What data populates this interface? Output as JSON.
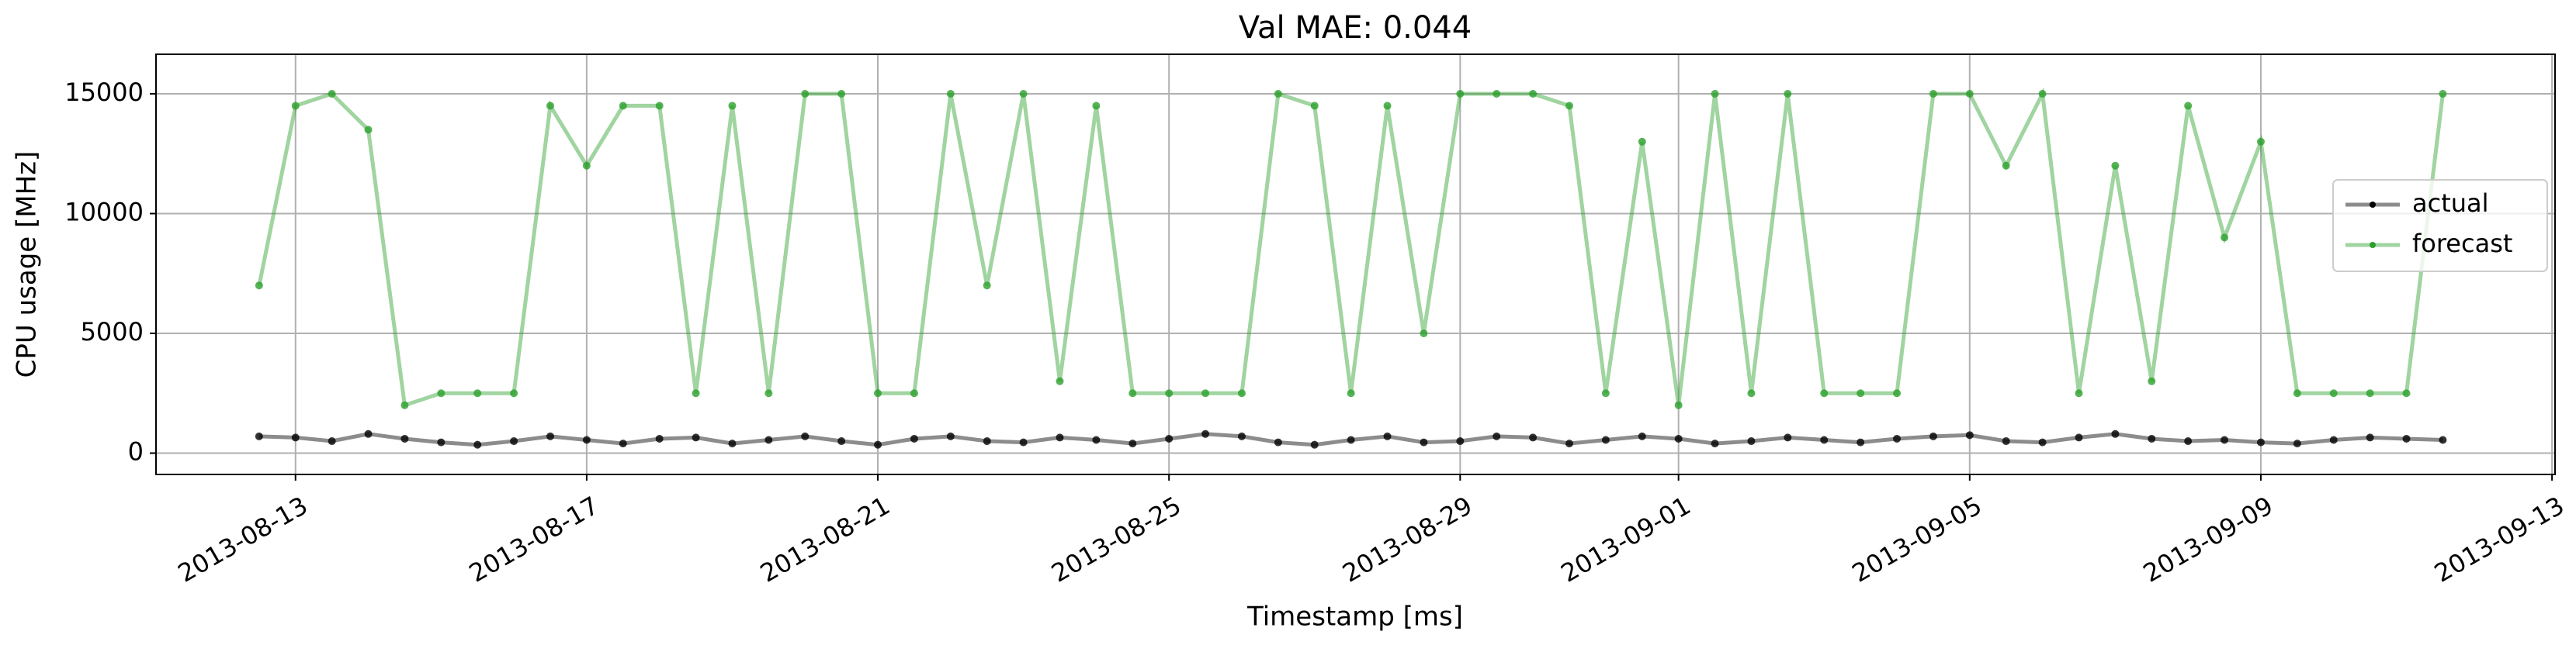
{
  "chart_data": {
    "type": "line",
    "title": "Val MAE: 0.044",
    "x_label": "Timestamp [ms]",
    "y_label": "CPU usage [MHz]",
    "x": [
      "2013-08-12 12:00",
      "2013-08-13 00:00",
      "2013-08-13 12:00",
      "2013-08-14 00:00",
      "2013-08-14 12:00",
      "2013-08-15 00:00",
      "2013-08-15 12:00",
      "2013-08-16 00:00",
      "2013-08-16 12:00",
      "2013-08-17 00:00",
      "2013-08-17 12:00",
      "2013-08-18 00:00",
      "2013-08-18 12:00",
      "2013-08-19 00:00",
      "2013-08-19 12:00",
      "2013-08-20 00:00",
      "2013-08-20 12:00",
      "2013-08-21 00:00",
      "2013-08-21 12:00",
      "2013-08-22 00:00",
      "2013-08-22 12:00",
      "2013-08-23 00:00",
      "2013-08-23 12:00",
      "2013-08-24 00:00",
      "2013-08-24 12:00",
      "2013-08-25 00:00",
      "2013-08-25 12:00",
      "2013-08-26 00:00",
      "2013-08-26 12:00",
      "2013-08-27 00:00",
      "2013-08-27 12:00",
      "2013-08-28 00:00",
      "2013-08-28 12:00",
      "2013-08-29 00:00",
      "2013-08-29 12:00",
      "2013-08-30 00:00",
      "2013-08-30 12:00",
      "2013-08-31 00:00",
      "2013-08-31 12:00",
      "2013-09-01 00:00",
      "2013-09-01 12:00",
      "2013-09-02 00:00",
      "2013-09-02 12:00",
      "2013-09-03 00:00",
      "2013-09-03 12:00",
      "2013-09-04 00:00",
      "2013-09-04 12:00",
      "2013-09-05 00:00",
      "2013-09-05 12:00",
      "2013-09-06 00:00",
      "2013-09-06 12:00",
      "2013-09-07 00:00",
      "2013-09-07 12:00",
      "2013-09-08 00:00",
      "2013-09-08 12:00",
      "2013-09-09 00:00",
      "2013-09-09 12:00",
      "2013-09-10 00:00",
      "2013-09-10 12:00",
      "2013-09-11 00:00",
      "2013-09-11 12:00"
    ],
    "series": [
      {
        "name": "actual",
        "color": "#000000",
        "values": [
          700,
          650,
          500,
          800,
          600,
          450,
          350,
          500,
          700,
          550,
          400,
          600,
          650,
          400,
          550,
          700,
          500,
          350,
          600,
          700,
          500,
          450,
          650,
          550,
          400,
          600,
          800,
          700,
          450,
          350,
          550,
          700,
          450,
          500,
          700,
          650,
          400,
          550,
          700,
          600,
          400,
          500,
          650,
          550,
          450,
          600,
          700,
          750,
          500,
          450,
          650,
          800,
          600,
          500,
          550,
          450,
          400,
          550,
          650,
          600,
          550
        ]
      },
      {
        "name": "forecast",
        "color": "#2ca02c",
        "values": [
          7000,
          14500,
          15000,
          13500,
          2000,
          2500,
          2500,
          2500,
          14500,
          12000,
          14500,
          14500,
          2500,
          14500,
          2500,
          15000,
          15000,
          2500,
          2500,
          15000,
          7000,
          15000,
          3000,
          14500,
          2500,
          2500,
          2500,
          2500,
          15000,
          14500,
          2500,
          14500,
          5000,
          15000,
          15000,
          15000,
          14500,
          2500,
          13000,
          2000,
          15000,
          2500,
          15000,
          2500,
          2500,
          2500,
          15000,
          15000,
          12000,
          15000,
          2500,
          12000,
          3000,
          14500,
          9000,
          13000,
          2500,
          2500,
          2500,
          2500,
          15000
        ]
      }
    ],
    "xlim": [
      "2013-08-11 02:00",
      "2013-09-13 01:00"
    ],
    "xticks": [
      "2013-08-13",
      "2013-08-17",
      "2013-08-21",
      "2013-08-25",
      "2013-08-29",
      "2013-09-01",
      "2013-09-05",
      "2013-09-09",
      "2013-09-13"
    ],
    "ylim": [
      -890,
      16650
    ],
    "yticks": [
      0,
      5000,
      10000,
      15000
    ],
    "grid": true,
    "legend": "right"
  }
}
